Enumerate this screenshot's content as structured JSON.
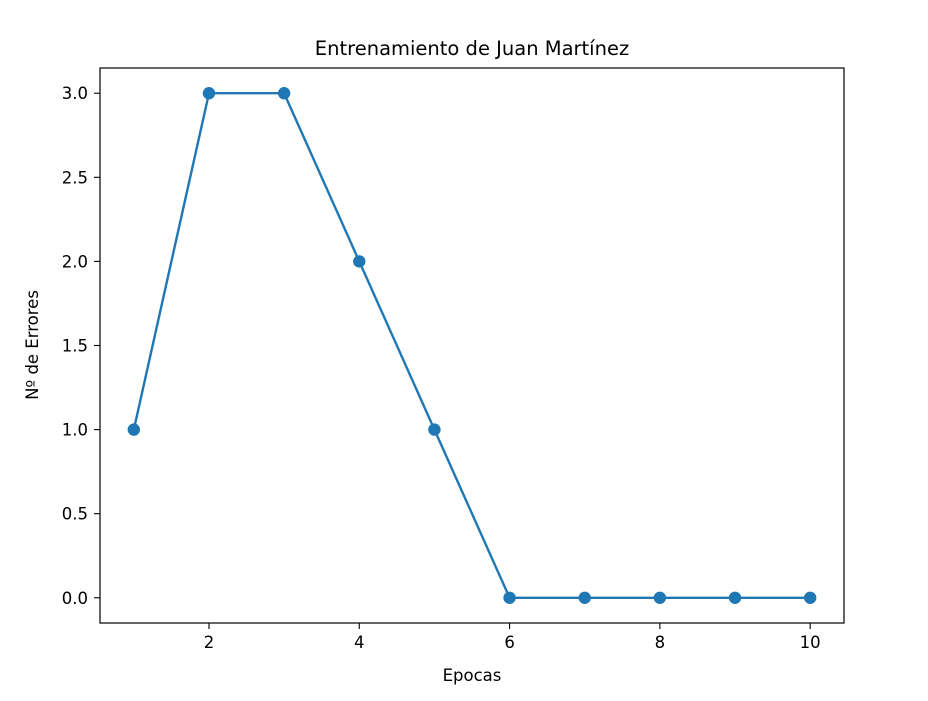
{
  "chart_data": {
    "type": "line",
    "title": "Entrenamiento de Juan Martínez",
    "xlabel": "Epocas",
    "ylabel": "Nº de Errores",
    "xlim": [
      0.55,
      10.45
    ],
    "ylim": [
      -0.15,
      3.15
    ],
    "x_ticks": [
      2,
      4,
      6,
      8,
      10
    ],
    "x_tick_labels": [
      "2",
      "4",
      "6",
      "8",
      "10"
    ],
    "y_ticks": [
      0.0,
      0.5,
      1.0,
      1.5,
      2.0,
      2.5,
      3.0
    ],
    "y_tick_labels": [
      "0.0",
      "0.5",
      "1.0",
      "1.5",
      "2.0",
      "2.5",
      "3.0"
    ],
    "grid": false,
    "legend": false,
    "series": [
      {
        "x": [
          1,
          2,
          3,
          4,
          5,
          6,
          7,
          8,
          9,
          10
        ],
        "values": [
          1,
          3,
          3,
          2,
          1,
          0,
          0,
          0,
          0,
          0
        ],
        "color": "#1f77b4",
        "marker": "circle"
      }
    ]
  }
}
